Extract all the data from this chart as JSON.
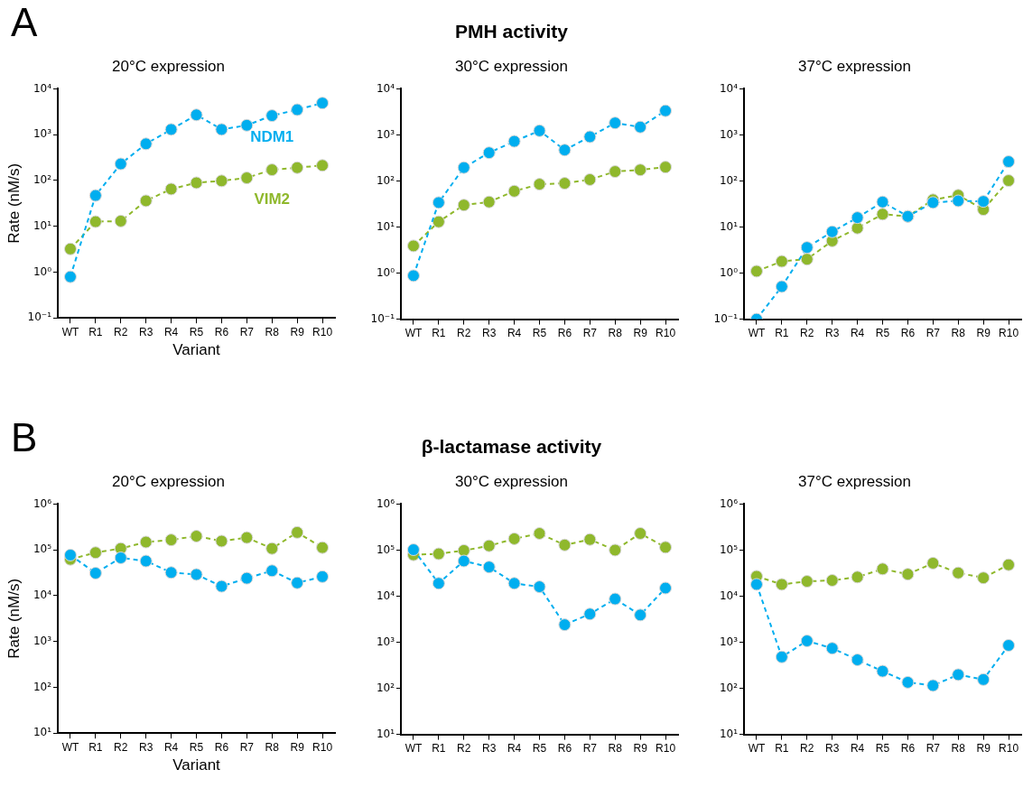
{
  "chart_data": [
    {
      "type": "line",
      "title": "20°C expression",
      "xlabel": "Variant",
      "ylabel": "Rate (nM/s)",
      "annotations": [
        "A",
        "PMH activity"
      ],
      "log": true,
      "legend": false,
      "grid": false,
      "marker": "circle",
      "line_style": "dashed",
      "categories": [
        "WT",
        "R1",
        "R2",
        "R3",
        "R4",
        "R5",
        "R6",
        "R7",
        "R8",
        "R9",
        "R10"
      ],
      "ylim": [
        0.1,
        10000
      ],
      "yticks": [
        {
          "value": 0.1,
          "label": "10⁻¹"
        },
        {
          "value": 1,
          "label": "10⁰"
        },
        {
          "value": 10,
          "label": "10¹"
        },
        {
          "value": 100,
          "label": "10²"
        },
        {
          "value": 1000,
          "label": "10³"
        },
        {
          "value": 10000,
          "label": "10⁴"
        }
      ],
      "series": [
        {
          "name": "NDM1",
          "color": "#00aeef",
          "values": [
            0.79,
            47,
            230,
            630,
            1300,
            2700,
            1300,
            1600,
            2600,
            3500,
            4900
          ]
        },
        {
          "name": "VIM2",
          "color": "#8fb82c",
          "values": [
            3.2,
            12.6,
            13,
            36,
            65,
            89,
            98,
            114,
            171,
            190,
            213
          ]
        }
      ]
    },
    {
      "type": "line",
      "title": "30°C expression",
      "log": true,
      "legend": false,
      "grid": false,
      "marker": "circle",
      "line_style": "dashed",
      "categories": [
        "WT",
        "R1",
        "R2",
        "R3",
        "R4",
        "R5",
        "R6",
        "R7",
        "R8",
        "R9",
        "R10"
      ],
      "ylim": [
        0.1,
        10000
      ],
      "yticks": [
        {
          "value": 0.1,
          "label": "10⁻¹"
        },
        {
          "value": 1,
          "label": "10⁰"
        },
        {
          "value": 10,
          "label": "10¹"
        },
        {
          "value": 100,
          "label": "10²"
        },
        {
          "value": 1000,
          "label": "10³"
        },
        {
          "value": 10000,
          "label": "10⁴"
        }
      ],
      "series": [
        {
          "color": "#00aeef",
          "values": [
            0.88,
            34,
            195,
            410,
            725,
            1230,
            470,
            910,
            1820,
            1480,
            3340
          ]
        },
        {
          "color": "#8fb82c",
          "values": [
            3.9,
            13,
            30,
            35,
            60,
            85,
            89,
            107,
            160,
            174,
            200
          ]
        }
      ]
    },
    {
      "type": "line",
      "title": "37°C expression",
      "log": true,
      "legend": false,
      "grid": false,
      "marker": "circle",
      "line_style": "dashed",
      "categories": [
        "WT",
        "R1",
        "R2",
        "R3",
        "R4",
        "R5",
        "R6",
        "R7",
        "R8",
        "R9",
        "R10"
      ],
      "ylim": [
        0.1,
        10000
      ],
      "yticks": [
        {
          "value": 0.1,
          "label": "10⁻¹"
        },
        {
          "value": 1,
          "label": "10⁰"
        },
        {
          "value": 10,
          "label": "10¹"
        },
        {
          "value": 100,
          "label": "10²"
        },
        {
          "value": 1000,
          "label": "10³"
        },
        {
          "value": 10000,
          "label": "10⁴"
        }
      ],
      "series": [
        {
          "color": "#00aeef",
          "values": [
            0.1,
            0.51,
            3.6,
            7.9,
            16,
            35,
            17,
            34,
            37,
            36,
            263
          ]
        },
        {
          "color": "#8fb82c",
          "values": [
            1.1,
            1.8,
            2.0,
            5.0,
            9.5,
            19,
            17,
            39,
            49,
            24,
            102
          ]
        }
      ]
    },
    {
      "type": "line",
      "title": "20°C expression",
      "xlabel": "Variant",
      "ylabel": "Rate (nM/s)",
      "annotations": [
        "B",
        "β-lactamase activity"
      ],
      "log": true,
      "legend": false,
      "grid": false,
      "marker": "circle",
      "line_style": "dashed",
      "categories": [
        "WT",
        "R1",
        "R2",
        "R3",
        "R4",
        "R5",
        "R6",
        "R7",
        "R8",
        "R9",
        "R10"
      ],
      "ylim": [
        10,
        1000000
      ],
      "yticks": [
        {
          "value": 10,
          "label": "10¹"
        },
        {
          "value": 100,
          "label": "10²"
        },
        {
          "value": 1000,
          "label": "10³"
        },
        {
          "value": 10000,
          "label": "10⁴"
        },
        {
          "value": 100000,
          "label": "10⁵"
        },
        {
          "value": 1000000,
          "label": "10⁶"
        }
      ],
      "series": [
        {
          "color": "#00aeef",
          "values": [
            77000,
            31000,
            67000,
            57000,
            32000,
            29000,
            16000,
            24000,
            35000,
            19000,
            26000
          ]
        },
        {
          "color": "#8fb82c",
          "values": [
            62000,
            87000,
            107000,
            148000,
            165000,
            199000,
            155000,
            185000,
            107000,
            240000,
            112000
          ]
        }
      ]
    },
    {
      "type": "line",
      "title": "30°C expression",
      "log": true,
      "legend": false,
      "grid": false,
      "marker": "circle",
      "line_style": "dashed",
      "categories": [
        "WT",
        "R1",
        "R2",
        "R3",
        "R4",
        "R5",
        "R6",
        "R7",
        "R8",
        "R9",
        "R10"
      ],
      "ylim": [
        10,
        1000000
      ],
      "yticks": [
        {
          "value": 10,
          "label": "10¹"
        },
        {
          "value": 100,
          "label": "10²"
        },
        {
          "value": 1000,
          "label": "10³"
        },
        {
          "value": 10000,
          "label": "10⁴"
        },
        {
          "value": 100000,
          "label": "10⁵"
        },
        {
          "value": 1000000,
          "label": "10⁶"
        }
      ],
      "series": [
        {
          "color": "#00aeef",
          "values": [
            102000,
            19000,
            58000,
            43000,
            19000,
            16000,
            2400,
            4100,
            8700,
            3900,
            15000
          ]
        },
        {
          "color": "#8fb82c",
          "values": [
            79000,
            83000,
            98000,
            124000,
            176000,
            230000,
            129000,
            170000,
            100000,
            230000,
            115000
          ]
        }
      ]
    },
    {
      "type": "line",
      "title": "37°C expression",
      "log": true,
      "legend": false,
      "grid": false,
      "marker": "circle",
      "line_style": "dashed",
      "categories": [
        "WT",
        "R1",
        "R2",
        "R3",
        "R4",
        "R5",
        "R6",
        "R7",
        "R8",
        "R9",
        "R10"
      ],
      "ylim": [
        10,
        1000000
      ],
      "yticks": [
        {
          "value": 10,
          "label": "10¹"
        },
        {
          "value": 100,
          "label": "10²"
        },
        {
          "value": 1000,
          "label": "10³"
        },
        {
          "value": 10000,
          "label": "10⁴"
        },
        {
          "value": 100000,
          "label": "10⁵"
        },
        {
          "value": 1000000,
          "label": "10⁶"
        }
      ],
      "series": [
        {
          "color": "#00aeef",
          "values": [
            18000,
            480,
            1070,
            740,
            415,
            235,
            135,
            115,
            198,
            155,
            855
          ]
        },
        {
          "color": "#8fb82c",
          "values": [
            27000,
            18000,
            21000,
            22000,
            26000,
            39000,
            30000,
            52000,
            32000,
            25000,
            48000
          ]
        }
      ]
    }
  ]
}
